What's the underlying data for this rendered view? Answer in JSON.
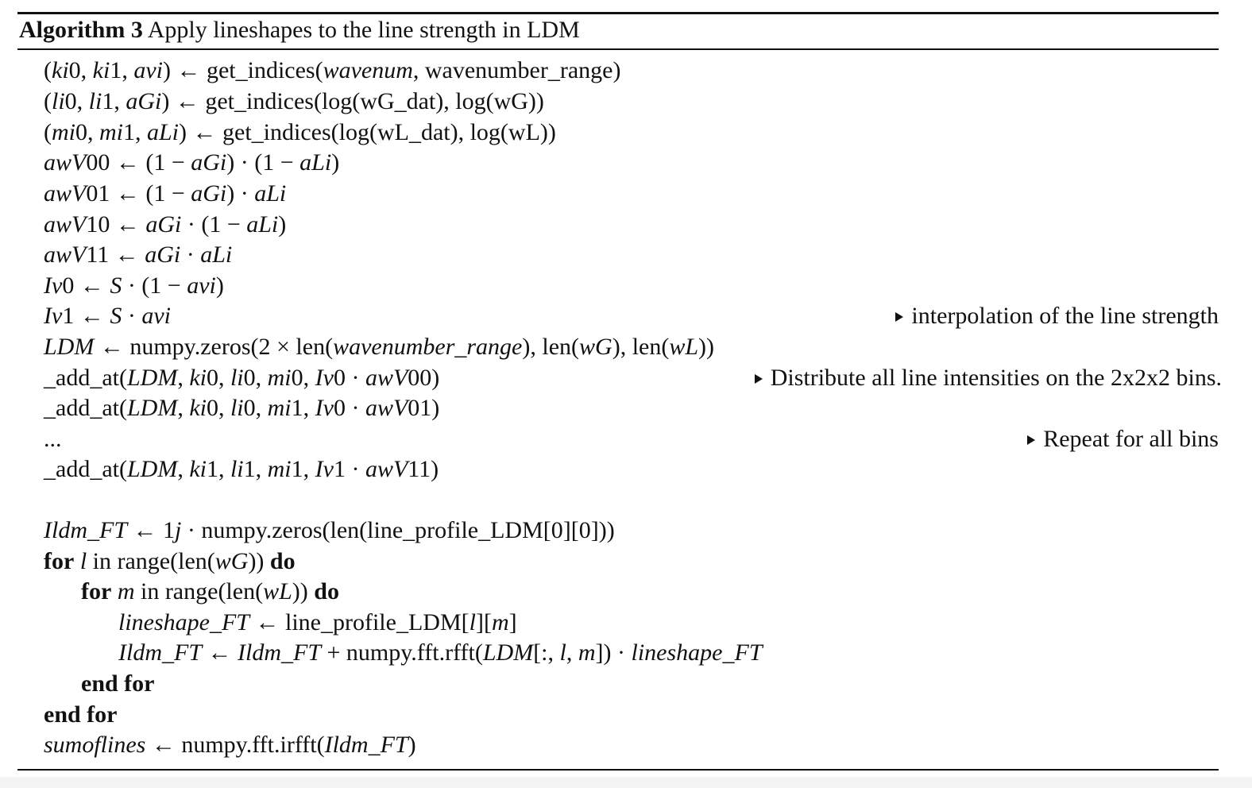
{
  "caption": {
    "label": "Algorithm 3",
    "title": "Apply lineshapes to the line strength in LDM"
  },
  "lines": {
    "l1": "(ki0, ki1, avi) ← get_indices(wavenum, wavenumber_range)",
    "l2": "(li0, li1, aGi) ← get_indices(log(wG_dat), log(wG))",
    "l3": "(mi0, mi1, aLi) ← get_indices(log(wL_dat), log(wL))",
    "l4": "awV00 ← (1 − aGi) · (1 − aLi)",
    "l5": "awV01 ← (1 − aGi) · aLi",
    "l6": "awV10 ← aGi · (1 − aLi)",
    "l7": "awV11 ← aGi · aLi",
    "l8": "Iv0 ← S · (1 − avi)",
    "l9": "Iv1 ← S · avi",
    "l10": "LDM ← numpy.zeros(2 × len(wavenumber_range), len(wG), len(wL))",
    "l11": "_add_at(LDM, ki0, li0, mi0, Iv0 · awV00)",
    "l12": "_add_at(LDM, ki0, li0, mi1, Iv0 · awV01)",
    "l13": "...",
    "l14": "_add_at(LDM, ki1, li1, mi1, Iv1 · awV11)",
    "l15": "Ildm_FT ← 1j · numpy.zeros(len(line_profile_LDM[0][0]))",
    "l16": "for l in range(len(wG)) do",
    "l17": "for m in range(len(wL)) do",
    "l18": "lineshape_FT ← line_profile_LDM[l][m]",
    "l19": "Ildm_FT ← Ildm_FT + numpy.fft.rfft(LDM[:, l, m]) · lineshape_FT",
    "l20": "end for",
    "l21": "end for",
    "l22": "sumoflines ← numpy.fft.irfft(Ildm_FT)"
  },
  "comments": {
    "c9": "interpolation of the line strength",
    "c11": "Distribute all line intensities on the 2x2x2 bins.",
    "c13": "Repeat for all bins"
  },
  "keywords": {
    "for_kw": "for",
    "in_kw": "in",
    "do_kw": "do",
    "end_for_kw": "end for"
  }
}
